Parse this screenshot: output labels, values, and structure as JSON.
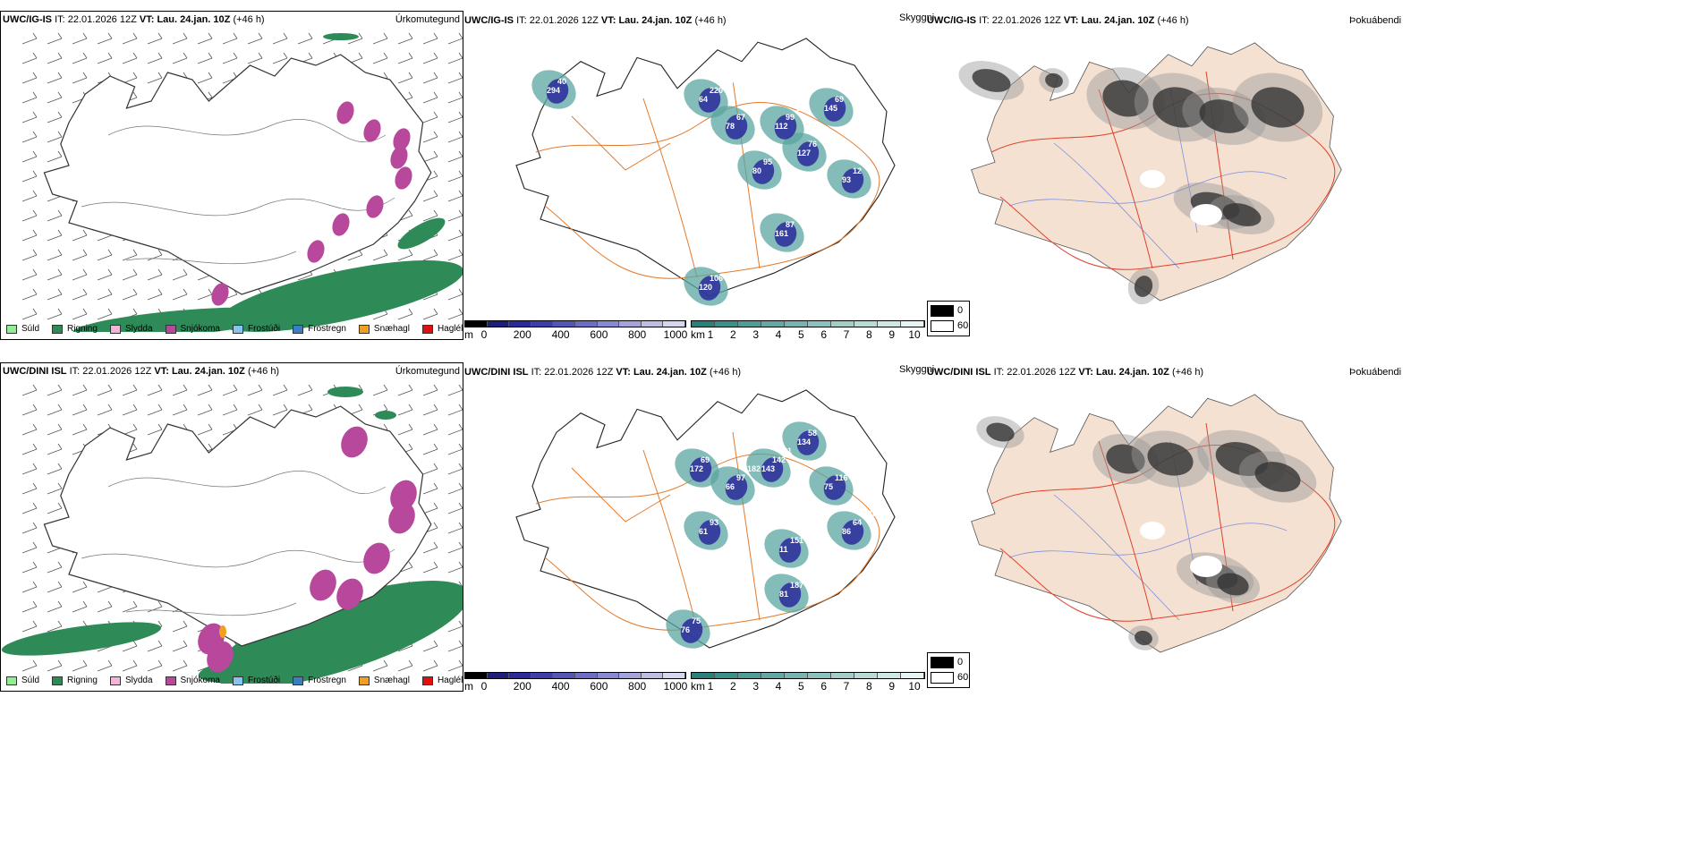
{
  "rows": [
    {
      "model": "UWC/IG-IS",
      "it_label": "IT:",
      "it_value": "22.01.2026 12Z",
      "vt_label": "VT:",
      "vt_value": "Lau. 24.jan. 10Z",
      "lead": "(+46 h)",
      "precip_title": "Úrkomutegund",
      "vis_title": "Skyggni",
      "cloud_title": "Þokuábendi",
      "numbers": [
        "64",
        "78",
        "80",
        "112",
        "127",
        "145",
        "93",
        "161",
        "120",
        "294",
        "220",
        "67",
        "95",
        "99",
        "76",
        "69",
        "12",
        "87",
        "106",
        "40",
        "100",
        "186",
        "96",
        "172",
        "107",
        "53"
      ]
    },
    {
      "model": "UWC/DINI ISL",
      "it_label": "IT:",
      "it_value": "22.01.2026 12Z",
      "vt_label": "VT:",
      "vt_value": "Lau. 24.jan. 10Z",
      "lead": "(+46 h)",
      "precip_title": "Úrkomutegund",
      "vis_title": "Skyggni",
      "cloud_title": "Þokuábendi",
      "numbers": [
        "172",
        "66",
        "143",
        "134",
        "75",
        "86",
        "11",
        "81",
        "76",
        "61",
        "69",
        "97",
        "142",
        "58",
        "116",
        "64",
        "151",
        "187",
        "75",
        "93",
        "91",
        "182",
        "81",
        "258",
        "255",
        "246",
        "72"
      ]
    }
  ],
  "precip_legend": [
    {
      "label": "Súld",
      "color": "#90ee90"
    },
    {
      "label": "Rigning",
      "color": "#2e8b57"
    },
    {
      "label": "Slydda",
      "color": "#f4b6d8"
    },
    {
      "label": "Snjókoma",
      "color": "#b8489c"
    },
    {
      "label": "Frostúði",
      "color": "#87c5ee"
    },
    {
      "label": "Frostregn",
      "color": "#3a7fc4"
    },
    {
      "label": "Snæhagl",
      "color": "#f0a020"
    },
    {
      "label": "Haglél",
      "color": "#e01010"
    }
  ],
  "ceiling_bar": {
    "unit": "m",
    "ticks": [
      "0",
      "200",
      "400",
      "600",
      "800",
      "1000"
    ],
    "colors": [
      "#000000",
      "#1e1e78",
      "#2a2a9a",
      "#3e3eab",
      "#5555b8",
      "#6d6dc4",
      "#8989cf",
      "#a4a4da",
      "#bebee4",
      "#d6d6ee"
    ]
  },
  "vis_bar": {
    "unit": "km",
    "ticks": [
      "1",
      "2",
      "3",
      "4",
      "5",
      "6",
      "7",
      "8",
      "9",
      "10"
    ],
    "colors": [
      "#2d7f7a",
      "#3d8f89",
      "#509c96",
      "#64a8a3",
      "#78b4b0",
      "#8dc1bd",
      "#a2ceca",
      "#b8dbd8",
      "#cee8e5",
      "#e6f4f3"
    ]
  },
  "cloud_key": {
    "items": [
      {
        "label": "0",
        "color": "#000000"
      },
      {
        "label": "60",
        "color": "#ffffff"
      }
    ]
  },
  "colors": {
    "land_fill": "#f5e1d2",
    "road_orange": "#e47a2a",
    "road_red": "#e0402a",
    "river_blue": "#7a8ee0",
    "snow": "#b8489c",
    "rain": "#2e8b57",
    "ceiling_blue": "#2a2a9a",
    "vis_teal": "#5aa6a0"
  }
}
